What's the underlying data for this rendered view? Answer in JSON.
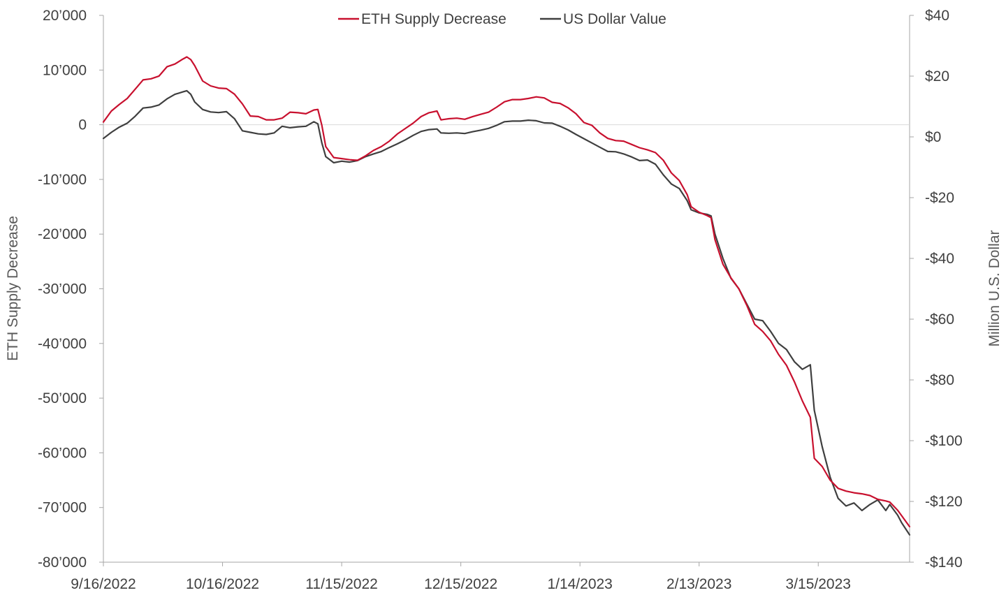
{
  "chart_data": {
    "type": "line",
    "title": "",
    "xlabel": "",
    "ylabel": "ETH Supply Decrease",
    "y2label": "Million U.S. Dollar",
    "ylim": [
      -80000,
      20000
    ],
    "y2lim": [
      -140,
      40
    ],
    "ytick_values": [
      20000,
      10000,
      0,
      -10000,
      -20000,
      -30000,
      -40000,
      -50000,
      -60000,
      -70000,
      -80000
    ],
    "ytick_labels": [
      "20’000",
      "10’000",
      "0",
      "-10’000",
      "-20’000",
      "-30’000",
      "-40’000",
      "-50’000",
      "-60’000",
      "-70’000",
      "-80’000"
    ],
    "y2tick_values": [
      40,
      20,
      0,
      -20,
      -40,
      -60,
      -80,
      -100,
      -120,
      -140
    ],
    "y2tick_labels": [
      "$40",
      "$20",
      "$0",
      "-$20",
      "-$40",
      "-$60",
      "-$80",
      "-$100",
      "-$120",
      "-$140"
    ],
    "x_start": "9/16/2022",
    "x_days": 203,
    "xtick_days": [
      0,
      30,
      60,
      90,
      120,
      150,
      180
    ],
    "xtick_labels": [
      "9/16/2022",
      "10/16/2022",
      "11/15/2022",
      "12/15/2022",
      "1/14/2023",
      "2/13/2023",
      "3/15/2023"
    ],
    "legend_position": "top-center",
    "grid": false,
    "series": [
      {
        "name": "ETH Supply Decrease",
        "axis": "left",
        "color": "#c8102e",
        "points": [
          [
            0,
            500
          ],
          [
            2,
            2500
          ],
          [
            4,
            3700
          ],
          [
            6,
            4800
          ],
          [
            8,
            6500
          ],
          [
            10,
            8200
          ],
          [
            12,
            8400
          ],
          [
            14,
            8900
          ],
          [
            16,
            10600
          ],
          [
            18,
            11100
          ],
          [
            20,
            12000
          ],
          [
            21,
            12400
          ],
          [
            22,
            11900
          ],
          [
            23,
            10800
          ],
          [
            25,
            8000
          ],
          [
            27,
            7100
          ],
          [
            29,
            6700
          ],
          [
            31,
            6600
          ],
          [
            33,
            5600
          ],
          [
            35,
            3800
          ],
          [
            37,
            1600
          ],
          [
            39,
            1500
          ],
          [
            41,
            900
          ],
          [
            43,
            900
          ],
          [
            45,
            1200
          ],
          [
            47,
            2300
          ],
          [
            49,
            2200
          ],
          [
            51,
            2000
          ],
          [
            53,
            2700
          ],
          [
            54,
            2800
          ],
          [
            55,
            -100
          ],
          [
            56,
            -4000
          ],
          [
            58,
            -6000
          ],
          [
            60,
            -6200
          ],
          [
            62,
            -6400
          ],
          [
            64,
            -6500
          ],
          [
            66,
            -5700
          ],
          [
            68,
            -4700
          ],
          [
            70,
            -4000
          ],
          [
            72,
            -3000
          ],
          [
            74,
            -1700
          ],
          [
            76,
            -700
          ],
          [
            78,
            300
          ],
          [
            80,
            1500
          ],
          [
            82,
            2200
          ],
          [
            84,
            2500
          ],
          [
            85,
            900
          ],
          [
            87,
            1100
          ],
          [
            89,
            1200
          ],
          [
            91,
            1000
          ],
          [
            93,
            1500
          ],
          [
            95,
            1900
          ],
          [
            97,
            2300
          ],
          [
            99,
            3200
          ],
          [
            101,
            4200
          ],
          [
            103,
            4600
          ],
          [
            105,
            4600
          ],
          [
            107,
            4800
          ],
          [
            109,
            5100
          ],
          [
            111,
            4900
          ],
          [
            113,
            4100
          ],
          [
            115,
            3900
          ],
          [
            117,
            3100
          ],
          [
            119,
            2000
          ],
          [
            121,
            400
          ],
          [
            123,
            -100
          ],
          [
            125,
            -1500
          ],
          [
            127,
            -2500
          ],
          [
            129,
            -2900
          ],
          [
            131,
            -3000
          ],
          [
            133,
            -3600
          ],
          [
            135,
            -4200
          ],
          [
            137,
            -4600
          ],
          [
            139,
            -5100
          ],
          [
            141,
            -6500
          ],
          [
            143,
            -8800
          ],
          [
            145,
            -10200
          ],
          [
            147,
            -12800
          ],
          [
            148,
            -15000
          ],
          [
            150,
            -16000
          ],
          [
            152,
            -16600
          ],
          [
            153,
            -17000
          ],
          [
            154,
            -21000
          ],
          [
            156,
            -25500
          ],
          [
            158,
            -28000
          ],
          [
            160,
            -30000
          ],
          [
            162,
            -33000
          ],
          [
            164,
            -36500
          ],
          [
            166,
            -37800
          ],
          [
            168,
            -39500
          ],
          [
            170,
            -42000
          ],
          [
            172,
            -44000
          ],
          [
            174,
            -47000
          ],
          [
            176,
            -50500
          ],
          [
            178,
            -53500
          ],
          [
            179,
            -61000
          ],
          [
            181,
            -62500
          ],
          [
            183,
            -65000
          ],
          [
            185,
            -66500
          ],
          [
            187,
            -67000
          ],
          [
            189,
            -67300
          ],
          [
            191,
            -67500
          ],
          [
            193,
            -67800
          ],
          [
            195,
            -68500
          ],
          [
            197,
            -68800
          ],
          [
            198,
            -69000
          ],
          [
            200,
            -70500
          ],
          [
            201,
            -71500
          ],
          [
            203,
            -73500
          ]
        ]
      },
      {
        "name": "US Dollar Value",
        "axis": "right",
        "color": "#3f3f3f",
        "points": [
          [
            0,
            -0.5
          ],
          [
            2,
            1.5
          ],
          [
            4,
            3.2
          ],
          [
            6,
            4.5
          ],
          [
            8,
            6.8
          ],
          [
            10,
            9.5
          ],
          [
            12,
            9.8
          ],
          [
            14,
            10.5
          ],
          [
            16,
            12.5
          ],
          [
            18,
            14.0
          ],
          [
            20,
            14.8
          ],
          [
            21,
            15.2
          ],
          [
            22,
            14.0
          ],
          [
            23,
            11.5
          ],
          [
            25,
            9.0
          ],
          [
            27,
            8.2
          ],
          [
            29,
            8.0
          ],
          [
            31,
            8.3
          ],
          [
            33,
            6.0
          ],
          [
            35,
            2.0
          ],
          [
            37,
            1.5
          ],
          [
            39,
            1.0
          ],
          [
            41,
            0.8
          ],
          [
            43,
            1.3
          ],
          [
            45,
            3.5
          ],
          [
            47,
            3.0
          ],
          [
            49,
            3.3
          ],
          [
            51,
            3.5
          ],
          [
            53,
            5.0
          ],
          [
            54,
            4.3
          ],
          [
            55,
            -2.0
          ],
          [
            56,
            -6.5
          ],
          [
            58,
            -8.5
          ],
          [
            60,
            -8.0
          ],
          [
            62,
            -8.3
          ],
          [
            64,
            -7.8
          ],
          [
            66,
            -6.5
          ],
          [
            68,
            -5.6
          ],
          [
            70,
            -4.8
          ],
          [
            72,
            -3.5
          ],
          [
            74,
            -2.3
          ],
          [
            76,
            -1.0
          ],
          [
            78,
            0.5
          ],
          [
            80,
            1.8
          ],
          [
            82,
            2.4
          ],
          [
            84,
            2.6
          ],
          [
            85,
            1.3
          ],
          [
            87,
            1.2
          ],
          [
            89,
            1.3
          ],
          [
            91,
            1.1
          ],
          [
            93,
            1.7
          ],
          [
            95,
            2.2
          ],
          [
            97,
            2.8
          ],
          [
            99,
            3.8
          ],
          [
            101,
            5.0
          ],
          [
            103,
            5.2
          ],
          [
            105,
            5.2
          ],
          [
            107,
            5.5
          ],
          [
            109,
            5.3
          ],
          [
            111,
            4.6
          ],
          [
            113,
            4.5
          ],
          [
            115,
            3.5
          ],
          [
            117,
            2.3
          ],
          [
            119,
            0.8
          ],
          [
            121,
            -0.6
          ],
          [
            123,
            -2.0
          ],
          [
            125,
            -3.4
          ],
          [
            127,
            -4.8
          ],
          [
            129,
            -4.9
          ],
          [
            131,
            -5.6
          ],
          [
            133,
            -6.6
          ],
          [
            135,
            -7.8
          ],
          [
            137,
            -7.6
          ],
          [
            139,
            -9.0
          ],
          [
            141,
            -12.5
          ],
          [
            143,
            -15.5
          ],
          [
            145,
            -17.0
          ],
          [
            147,
            -21.0
          ],
          [
            148,
            -24.0
          ],
          [
            150,
            -25.0
          ],
          [
            152,
            -25.5
          ],
          [
            153,
            -26.0
          ],
          [
            154,
            -32.0
          ],
          [
            156,
            -40.0
          ],
          [
            158,
            -46.5
          ],
          [
            160,
            -50.0
          ],
          [
            162,
            -55.0
          ],
          [
            164,
            -60.0
          ],
          [
            166,
            -60.5
          ],
          [
            168,
            -64.0
          ],
          [
            170,
            -68.0
          ],
          [
            172,
            -70.0
          ],
          [
            174,
            -74.0
          ],
          [
            176,
            -76.5
          ],
          [
            178,
            -75.0
          ],
          [
            179,
            -90.0
          ],
          [
            181,
            -102.0
          ],
          [
            183,
            -112.0
          ],
          [
            185,
            -119.0
          ],
          [
            187,
            -121.5
          ],
          [
            189,
            -120.5
          ],
          [
            191,
            -123.0
          ],
          [
            193,
            -121.0
          ],
          [
            195,
            -119.5
          ],
          [
            197,
            -123.0
          ],
          [
            198,
            -121.0
          ],
          [
            200,
            -124.5
          ],
          [
            201,
            -127.0
          ],
          [
            203,
            -131.0
          ]
        ]
      }
    ]
  }
}
